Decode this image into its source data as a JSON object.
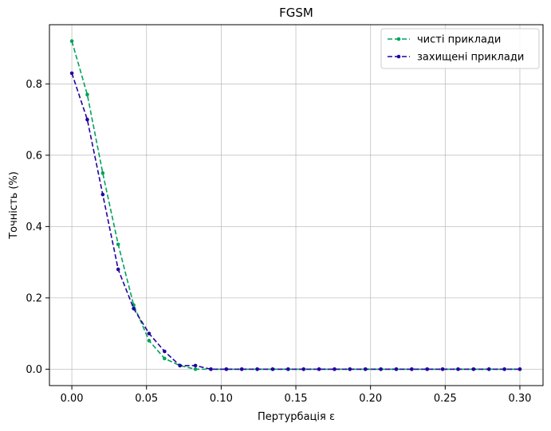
{
  "chart_data": {
    "type": "line",
    "title": "FGSM",
    "xlabel": "Пертурбація ε",
    "ylabel": "Точність (%)",
    "xlim": [
      -0.015,
      0.3155
    ],
    "ylim": [
      -0.046,
      0.966
    ],
    "xticks": [
      0.0,
      0.05,
      0.1,
      0.15,
      0.2,
      0.25,
      0.3
    ],
    "xtick_labels": [
      "0.00",
      "0.05",
      "0.10",
      "0.15",
      "0.20",
      "0.25",
      "0.30"
    ],
    "yticks": [
      0.0,
      0.2,
      0.4,
      0.6,
      0.8
    ],
    "ytick_labels": [
      "0.0",
      "0.2",
      "0.4",
      "0.6",
      "0.8"
    ],
    "grid": true,
    "legend_position": "top-right",
    "x": [
      0.0,
      0.01034,
      0.02069,
      0.03103,
      0.04138,
      0.05172,
      0.06207,
      0.07241,
      0.08276,
      0.0931,
      0.10345,
      0.11379,
      0.12414,
      0.13448,
      0.14483,
      0.15517,
      0.16552,
      0.17586,
      0.18621,
      0.19655,
      0.2069,
      0.21724,
      0.22759,
      0.23793,
      0.24828,
      0.25862,
      0.26897,
      0.27931,
      0.28966,
      0.3
    ],
    "series": [
      {
        "name": "чисті приклади",
        "color": "#00a25b",
        "values": [
          0.92,
          0.77,
          0.55,
          0.35,
          0.18,
          0.08,
          0.03,
          0.01,
          0.0,
          0.0,
          0.0,
          0.0,
          0.0,
          0.0,
          0.0,
          0.0,
          0.0,
          0.0,
          0.0,
          0.0,
          0.0,
          0.0,
          0.0,
          0.0,
          0.0,
          0.0,
          0.0,
          0.0,
          0.0,
          0.0
        ]
      },
      {
        "name": "захищені приклади",
        "color": "#2200a0",
        "values": [
          0.83,
          0.7,
          0.49,
          0.28,
          0.17,
          0.1,
          0.05,
          0.01,
          0.01,
          0.0,
          0.0,
          0.0,
          0.0,
          0.0,
          0.0,
          0.0,
          0.0,
          0.0,
          0.0,
          0.0,
          0.0,
          0.0,
          0.0,
          0.0,
          0.0,
          0.0,
          0.0,
          0.0,
          0.0,
          0.0
        ]
      }
    ]
  }
}
